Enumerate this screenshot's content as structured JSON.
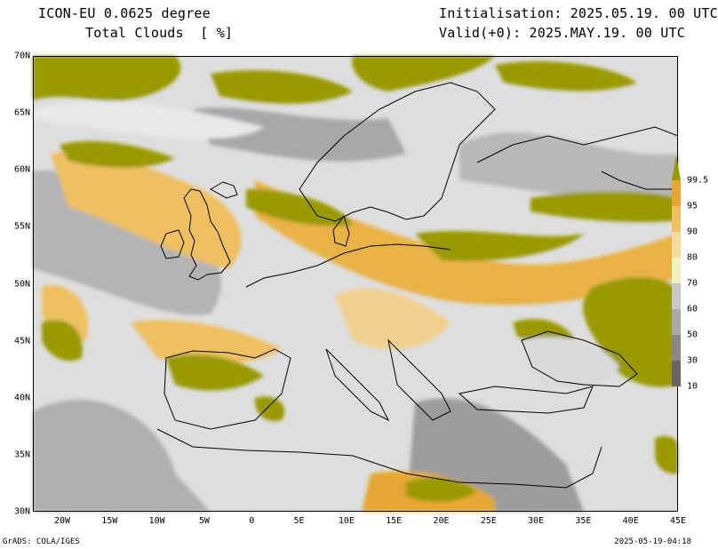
{
  "header": {
    "title_line1": "ICON-EU 0.0625 degree",
    "title_line2": "Total Clouds  [ %]",
    "init": "Initialisation: 2025.05.19. 00 UTC",
    "valid": "Valid(+0): 2025.MAY.19. 00 UTC"
  },
  "axes": {
    "lat_labels": [
      "70N",
      "65N",
      "60N",
      "55N",
      "50N",
      "45N",
      "40N",
      "35N",
      "30N"
    ],
    "lon_labels": [
      "20W",
      "15W",
      "10W",
      "5W",
      "0",
      "5E",
      "10E",
      "15E",
      "20E",
      "25E",
      "30E",
      "35E",
      "40E",
      "45E"
    ]
  },
  "legend": {
    "labels": [
      "99.5",
      "95",
      "90",
      "80",
      "70",
      "60",
      "50",
      "30",
      "10"
    ],
    "colors": [
      "#999900",
      "#e6a832",
      "#eec060",
      "#f2dca0",
      "#f0f0c0",
      "#c8c8c8",
      "#aaaaaa",
      "#888888",
      "#666666"
    ]
  },
  "footer": {
    "left": "GrADS: COLA/IGES",
    "right": "2025-05-19-04:18"
  },
  "colors": {
    "background": "#dcdcdc",
    "high": "#999900",
    "orange": "#e6a832",
    "coast": "#000000"
  }
}
